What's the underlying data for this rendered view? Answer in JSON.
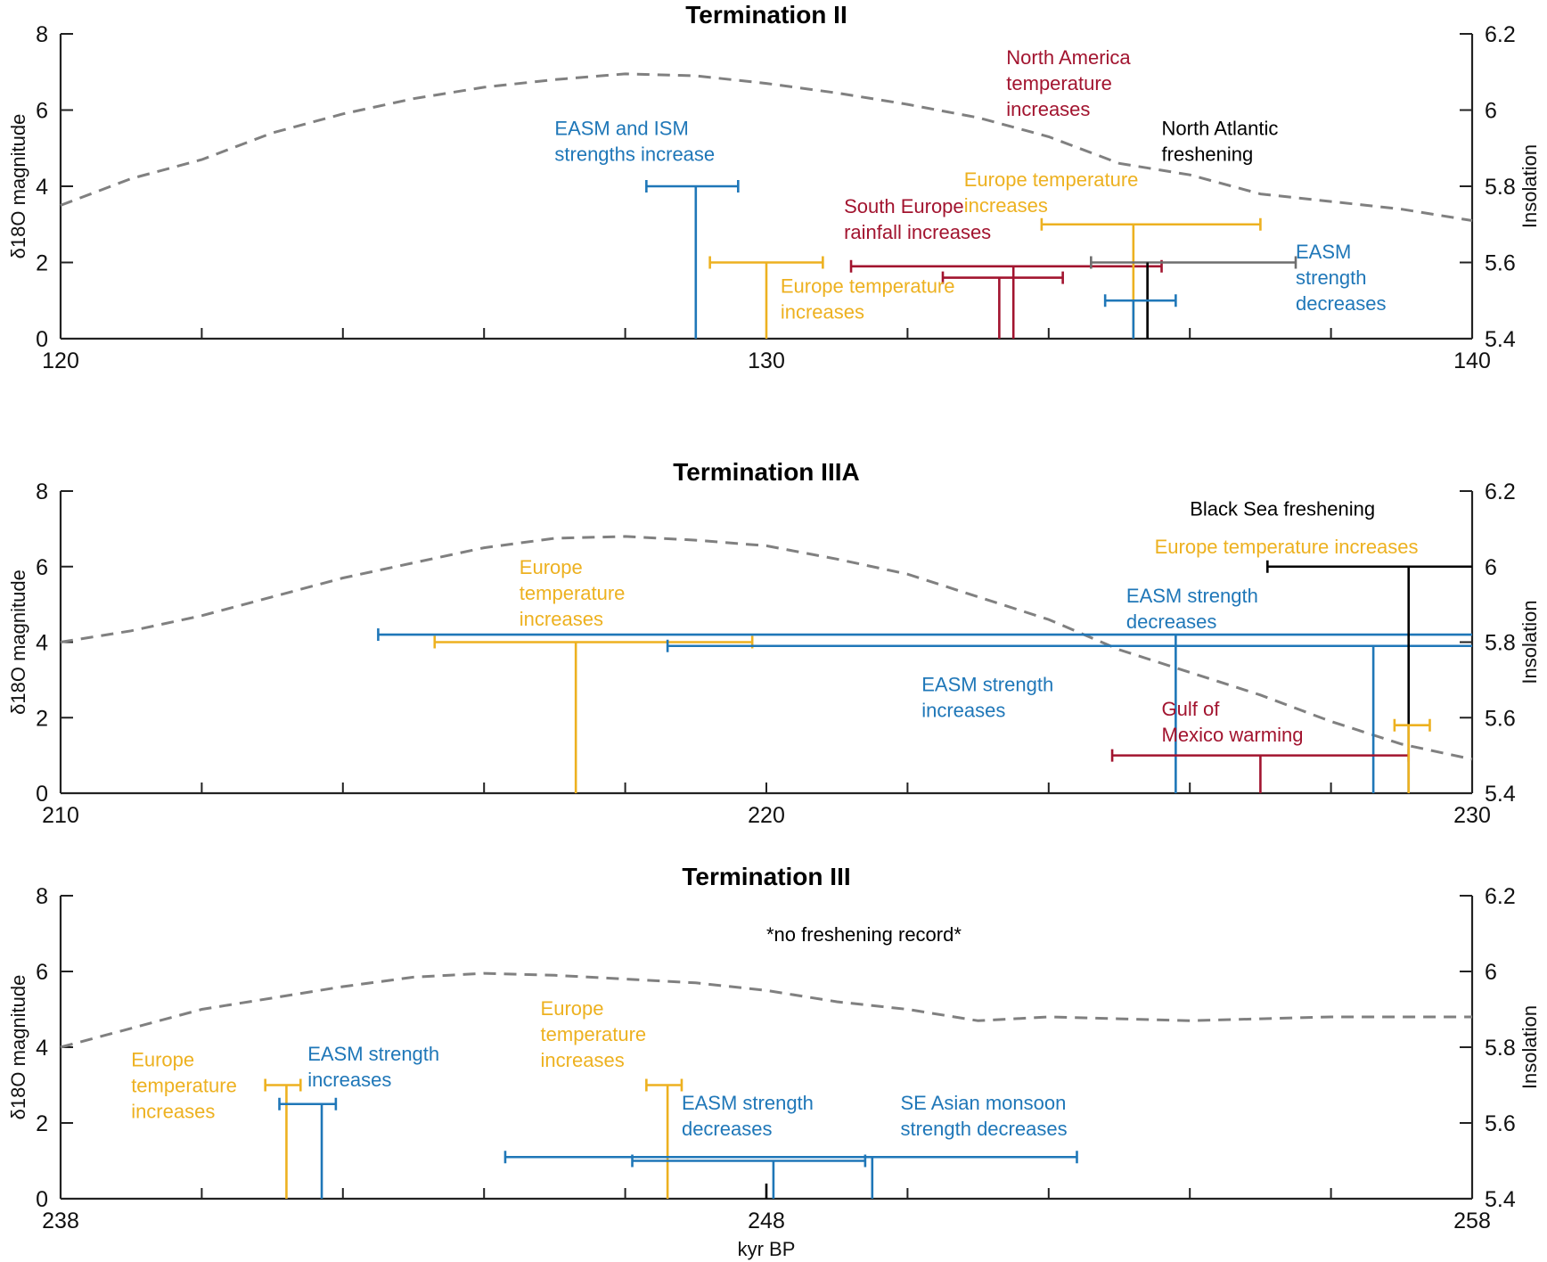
{
  "colors": {
    "blue": "#1F77B8",
    "yellow": "#EDB120",
    "red": "#A2142F",
    "black": "#000000",
    "gray": "#6E6E6E",
    "insolation": "#808080"
  },
  "chart_data": [
    {
      "type": "line",
      "title": "Termination II",
      "xlim": [
        120,
        140
      ],
      "xticks": [
        120,
        130,
        140
      ],
      "ylim": [
        0,
        8
      ],
      "yticks": [
        0,
        2,
        4,
        6,
        8
      ],
      "ylabel_left": "δ18O magnitude",
      "ylabel_right": "Insolation",
      "y2lim": [
        5.4,
        6.2
      ],
      "y2ticks": [
        5.4,
        5.6,
        5.8,
        6,
        6.2
      ],
      "y2tick_labels": [
        "5.4",
        "5.6",
        "5.8",
        "6",
        "6.2"
      ],
      "xlabel": "",
      "insolation": {
        "x": [
          120,
          121,
          122,
          123,
          124,
          125,
          126,
          127,
          128,
          129,
          130,
          131,
          132,
          133,
          134,
          135,
          136,
          137,
          138,
          139,
          140
        ],
        "y": [
          5.75,
          5.82,
          5.87,
          5.94,
          5.99,
          6.03,
          6.06,
          6.08,
          6.095,
          6.09,
          6.07,
          6.045,
          6.015,
          5.98,
          5.93,
          5.86,
          5.83,
          5.78,
          5.76,
          5.74,
          5.71
        ]
      },
      "events": [
        {
          "x": 129,
          "height": 4,
          "xerr": [
            128.3,
            129.6
          ],
          "color": "blue"
        },
        {
          "x": 130,
          "height": 2,
          "xerr": [
            129.2,
            130.8
          ],
          "color": "yellow"
        },
        {
          "x": 133.3,
          "height": 1.6,
          "xerr": [
            132.5,
            134.2
          ],
          "color": "red"
        },
        {
          "x": 133.5,
          "height": 1.9,
          "xerr": [
            131.2,
            135.6
          ],
          "color": "red"
        },
        {
          "x": 135.2,
          "height": 3,
          "xerr": [
            133.9,
            137
          ],
          "color": "yellow"
        },
        {
          "x": 135.4,
          "height": 2,
          "xerr": [
            134.6,
            137.5
          ],
          "color": "gray"
        },
        {
          "x": 135.4,
          "height": 2,
          "xerr": null,
          "color": "black"
        },
        {
          "x": 135.2,
          "height": 1,
          "xerr": [
            134.8,
            135.8
          ],
          "color": "blue"
        }
      ],
      "annotations": [
        {
          "lines": [
            "EASM and ISM",
            "strengths increase"
          ],
          "color": "blue",
          "x": 127,
          "y": 5.35
        },
        {
          "lines": [
            "Europe temperature",
            "increases"
          ],
          "color": "yellow",
          "x": 130.2,
          "y": 1.2
        },
        {
          "lines": [
            "South Europe",
            "rainfall increases"
          ],
          "color": "red",
          "x": 131.1,
          "y": 3.3
        },
        {
          "lines": [
            "North America",
            "temperature",
            "increases"
          ],
          "color": "red",
          "x": 133.4,
          "y": 7.2
        },
        {
          "lines": [
            "Europe temperature",
            "increases"
          ],
          "color": "yellow",
          "x": 132.8,
          "y": 4
        },
        {
          "lines": [
            "North Atlantic",
            "freshening"
          ],
          "color": "black",
          "x": 135.6,
          "y": 5.35
        },
        {
          "lines": [
            "EASM",
            "strength",
            "decreases"
          ],
          "color": "blue",
          "x": 137.5,
          "y": 2.1
        }
      ]
    },
    {
      "type": "line",
      "title": "Termination IIIA",
      "xlim": [
        210,
        230
      ],
      "xticks": [
        210,
        220,
        230
      ],
      "ylim": [
        0,
        8
      ],
      "yticks": [
        0,
        2,
        4,
        6,
        8
      ],
      "ylabel_left": "δ18O magnitude",
      "ylabel_right": "Insolation",
      "y2lim": [
        5.4,
        6.2
      ],
      "y2ticks": [
        5.4,
        5.6,
        5.8,
        6,
        6.2
      ],
      "y2tick_labels": [
        "5.4",
        "5.6",
        "5.8",
        "6",
        "6.2"
      ],
      "xlabel": "",
      "insolation": {
        "x": [
          210,
          211,
          212,
          213,
          214,
          215,
          216,
          217,
          218,
          219,
          220,
          221,
          222,
          223,
          224,
          225,
          226,
          227,
          228,
          229,
          230
        ],
        "y": [
          5.8,
          5.83,
          5.87,
          5.92,
          5.97,
          6.01,
          6.05,
          6.075,
          6.08,
          6.07,
          6.055,
          6.02,
          5.98,
          5.92,
          5.86,
          5.78,
          5.72,
          5.66,
          5.59,
          5.53,
          5.49
        ]
      },
      "events": [
        {
          "x": 217.3,
          "height": 4,
          "xerr": [
            215.3,
            219.8
          ],
          "color": "yellow"
        },
        {
          "x": 225.8,
          "height": 4.2,
          "xerr": [
            214.5,
            230
          ],
          "color": "blue"
        },
        {
          "x": 228.6,
          "height": 3.9,
          "xerr": [
            218.6,
            230
          ],
          "color": "blue"
        },
        {
          "x": 229.1,
          "height": 6,
          "xerr": [
            227.1,
            230
          ],
          "color": "black"
        },
        {
          "x": 227,
          "height": 1,
          "xerr": [
            224.9,
            229.1
          ],
          "color": "red"
        },
        {
          "x": 229.1,
          "height": 1.8,
          "xerr": [
            228.9,
            229.4
          ],
          "color": "yellow"
        }
      ],
      "annotations": [
        {
          "lines": [
            "Black Sea freshening"
          ],
          "color": "black",
          "x": 226.0,
          "y": 7.35
        },
        {
          "lines": [
            "Europe temperature increases"
          ],
          "color": "yellow",
          "x": 225.5,
          "y": 6.35
        },
        {
          "lines": [
            "Europe",
            "temperature",
            "increases"
          ],
          "color": "yellow",
          "x": 216.5,
          "y": 5.8
        },
        {
          "lines": [
            "EASM strength",
            "decreases"
          ],
          "color": "blue",
          "x": 225.1,
          "y": 5.05
        },
        {
          "lines": [
            "EASM strength",
            "increases"
          ],
          "color": "blue",
          "x": 222.2,
          "y": 2.7
        },
        {
          "lines": [
            "Gulf of",
            "Mexico warming"
          ],
          "color": "red",
          "x": 225.6,
          "y": 2.05
        }
      ]
    },
    {
      "type": "line",
      "title": "Termination III",
      "xlim": [
        238,
        258
      ],
      "xticks": [
        238,
        248,
        258
      ],
      "ylim": [
        0,
        8
      ],
      "yticks": [
        0,
        2,
        4,
        6,
        8
      ],
      "ylabel_left": "δ18O magnitude",
      "ylabel_right": "Insolation",
      "y2lim": [
        5.4,
        6.2
      ],
      "y2ticks": [
        5.4,
        5.6,
        5.8,
        6,
        6.2
      ],
      "y2tick_labels": [
        "5.4",
        "5.6",
        "5.8",
        "6",
        "6.2"
      ],
      "xlabel": "kyr BP",
      "insolation": {
        "x": [
          238,
          239,
          240,
          241,
          242,
          243,
          244,
          245,
          246,
          247,
          248,
          249,
          250,
          251,
          252,
          253,
          254,
          255,
          256,
          257,
          258
        ],
        "y": [
          5.8,
          5.85,
          5.9,
          5.93,
          5.96,
          5.985,
          5.995,
          5.99,
          5.98,
          5.97,
          5.95,
          5.92,
          5.9,
          5.87,
          5.88,
          5.875,
          5.87,
          5.875,
          5.88,
          5.88,
          5.88
        ]
      },
      "events": [
        {
          "x": 241.2,
          "height": 3,
          "xerr": [
            240.9,
            241.4
          ],
          "color": "yellow"
        },
        {
          "x": 241.7,
          "height": 2.5,
          "xerr": [
            241.1,
            241.9
          ],
          "color": "blue"
        },
        {
          "x": 246.6,
          "height": 3,
          "xerr": [
            246.3,
            246.8
          ],
          "color": "yellow"
        },
        {
          "x": 249.5,
          "height": 1.1,
          "xerr": [
            244.3,
            252.4
          ],
          "color": "blue"
        },
        {
          "x": 248.1,
          "height": 1,
          "xerr": [
            246.1,
            249.4
          ],
          "color": "blue"
        },
        {
          "x": 248.0,
          "height": 0.4,
          "xerr": null,
          "color": "black"
        }
      ],
      "annotations": [
        {
          "lines": [
            "*no freshening record*"
          ],
          "color": "black",
          "x": 248.0,
          "y": 6.8
        },
        {
          "lines": [
            "Europe",
            "temperature",
            "increases"
          ],
          "color": "yellow",
          "x": 239.0,
          "y": 3.5
        },
        {
          "lines": [
            "EASM strength",
            "increases"
          ],
          "color": "blue",
          "x": 241.5,
          "y": 3.65
        },
        {
          "lines": [
            "Europe",
            "temperature",
            "increases"
          ],
          "color": "yellow",
          "x": 244.8,
          "y": 4.85
        },
        {
          "lines": [
            "EASM strength",
            "decreases"
          ],
          "color": "blue",
          "x": 246.8,
          "y": 2.35
        },
        {
          "lines": [
            "SE Asian monsoon",
            "strength decreases"
          ],
          "color": "blue",
          "x": 249.9,
          "y": 2.35
        }
      ]
    }
  ]
}
